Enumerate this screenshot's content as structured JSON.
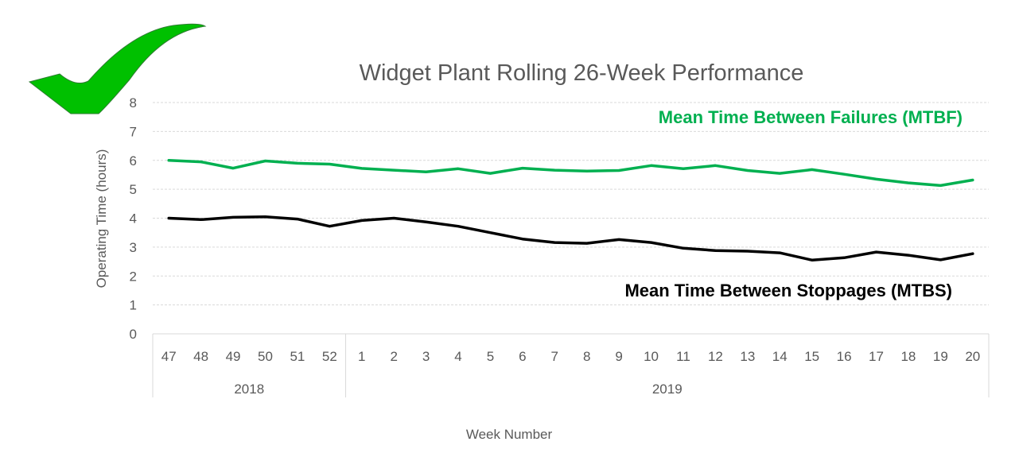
{
  "colors": {
    "mtbf": "#00b050",
    "mtbs": "#000000",
    "grid": "#d9d9d9",
    "text": "#595959",
    "checkmark_fill": "#00c000",
    "checkmark_stroke": "#2e7d32"
  },
  "decoration": {
    "icon": "checkmark-icon"
  },
  "chart_data": {
    "type": "line",
    "title": "Widget Plant Rolling 26-Week Performance",
    "xlabel": "Week Number",
    "ylabel": "Operating Time (hours)",
    "ylim": [
      0,
      8
    ],
    "yticks": [
      0,
      1,
      2,
      3,
      4,
      5,
      6,
      7,
      8
    ],
    "grid": true,
    "categories": [
      "47",
      "48",
      "49",
      "50",
      "51",
      "52",
      "1",
      "2",
      "3",
      "4",
      "5",
      "6",
      "7",
      "8",
      "9",
      "10",
      "11",
      "12",
      "13",
      "14",
      "15",
      "16",
      "17",
      "18",
      "19",
      "20"
    ],
    "year_groups": [
      {
        "label": "2018",
        "count": 6
      },
      {
        "label": "2019",
        "count": 20
      }
    ],
    "series": [
      {
        "name": "Mean Time Between Failures (MTBF)",
        "key": "mtbf",
        "values": [
          6.0,
          5.95,
          5.73,
          5.98,
          5.9,
          5.87,
          5.72,
          5.66,
          5.6,
          5.71,
          5.55,
          5.73,
          5.66,
          5.63,
          5.65,
          5.82,
          5.71,
          5.82,
          5.65,
          5.55,
          5.68,
          5.52,
          5.35,
          5.22,
          5.13,
          5.32
        ]
      },
      {
        "name": "Mean Time Between Stoppages (MTBS)",
        "key": "mtbs",
        "values": [
          4.0,
          3.95,
          4.03,
          4.05,
          3.97,
          3.72,
          3.92,
          4.0,
          3.87,
          3.72,
          3.5,
          3.28,
          3.16,
          3.13,
          3.26,
          3.16,
          2.96,
          2.88,
          2.86,
          2.8,
          2.55,
          2.63,
          2.83,
          2.72,
          2.56,
          2.77
        ]
      }
    ]
  }
}
